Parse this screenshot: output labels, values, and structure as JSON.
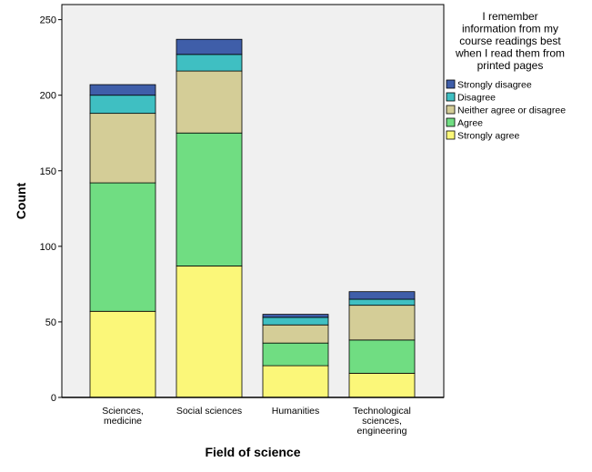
{
  "chart_data": {
    "type": "bar",
    "stacked": true,
    "categories": [
      [
        "Sciences,",
        "medicine"
      ],
      [
        "Social sciences"
      ],
      [
        "Humanities"
      ],
      [
        "Technological",
        "sciences,",
        "engineering"
      ]
    ],
    "series": [
      {
        "name": "Strongly agree",
        "color": "#fbf779",
        "values": [
          57,
          87,
          21,
          16
        ]
      },
      {
        "name": "Agree",
        "color": "#70dd82",
        "values": [
          85,
          88,
          15,
          22
        ]
      },
      {
        "name": "Neither agree or disagree",
        "color": "#d4cd97",
        "values": [
          46,
          41,
          12,
          23
        ]
      },
      {
        "name": "Disagree",
        "color": "#3fbfc2",
        "values": [
          12,
          11,
          5,
          4
        ]
      },
      {
        "name": "Strongly disagree",
        "color": "#3f5ea9",
        "values": [
          7,
          10,
          2,
          5
        ]
      }
    ],
    "legend_order": [
      "Strongly disagree",
      "Disagree",
      "Neither agree or disagree",
      "Agree",
      "Strongly agree"
    ],
    "legend_title": [
      "I remember",
      "information from my",
      "course readings best",
      "when I read them from",
      "printed pages"
    ],
    "xlabel": "Field of science",
    "ylabel": "Count",
    "ylim": [
      0,
      260
    ],
    "yticks": [
      0,
      50,
      100,
      150,
      200,
      250
    ],
    "grid": false,
    "legend_position": "right",
    "plot_background": "#f0f0f0"
  }
}
